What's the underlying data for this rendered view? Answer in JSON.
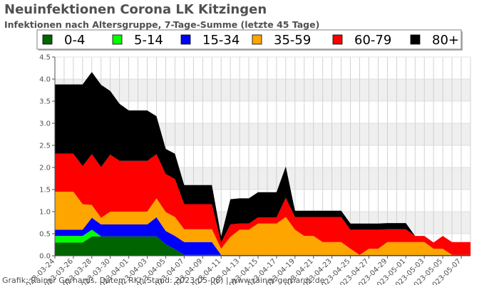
{
  "chart_data": {
    "type": "area",
    "stacked": true,
    "title": "Neuinfektionen Corona LK Kitzingen",
    "subtitle": "Infektionen nach Altersgruppe, 7-Tage-Summe (letzte 45 Tage)",
    "credit": "Grafik: Rainer Gerhards, Daten: RKI (Stand: 2023-05-08) | www.rainer-gerhards.de",
    "legend_position": "top",
    "grid": true,
    "ylim": [
      0,
      4.5
    ],
    "yticks": [
      "0.0",
      "0.5",
      "1.0",
      "1.5",
      "2.0",
      "2.5",
      "3.0",
      "3.5",
      "4.0",
      "4.5"
    ],
    "xtick_labels": [
      "2023-03-24",
      "2023-03-26",
      "2023-03-28",
      "2023-03-30",
      "2023-04-01",
      "2023-04-03",
      "2023-04-05",
      "2023-04-07",
      "2023-04-09",
      "2023-04-11",
      "2023-04-13",
      "2023-04-15",
      "2023-04-17",
      "2023-04-19",
      "2023-04-21",
      "2023-04-23",
      "2023-04-25",
      "2023-04-27",
      "2023-04-29",
      "2023-05-01",
      "2023-05-03",
      "2023-05-05",
      "2023-05-07"
    ],
    "x": [
      "2023-03-24",
      "2023-03-25",
      "2023-03-26",
      "2023-03-27",
      "2023-03-28",
      "2023-03-29",
      "2023-03-30",
      "2023-03-31",
      "2023-04-01",
      "2023-04-02",
      "2023-04-03",
      "2023-04-04",
      "2023-04-05",
      "2023-04-06",
      "2023-04-07",
      "2023-04-08",
      "2023-04-09",
      "2023-04-10",
      "2023-04-11",
      "2023-04-12",
      "2023-04-13",
      "2023-04-14",
      "2023-04-15",
      "2023-04-16",
      "2023-04-17",
      "2023-04-18",
      "2023-04-19",
      "2023-04-20",
      "2023-04-21",
      "2023-04-22",
      "2023-04-23",
      "2023-04-24",
      "2023-04-25",
      "2023-04-26",
      "2023-04-27",
      "2023-04-28",
      "2023-04-29",
      "2023-04-30",
      "2023-05-01",
      "2023-05-02",
      "2023-05-03",
      "2023-05-04",
      "2023-05-05",
      "2023-05-06",
      "2023-05-07",
      "2023-05-08"
    ],
    "series": [
      {
        "name": "0-4",
        "color": "#006400",
        "values": [
          0.3,
          0.3,
          0.3,
          0.3,
          0.44,
          0.44,
          0.44,
          0.44,
          0.44,
          0.44,
          0.44,
          0.44,
          0.26,
          0.15,
          0.02,
          0.02,
          0.02,
          0.02,
          0.02,
          0.02,
          0.02,
          0.02,
          0.02,
          0.02,
          0.02,
          0.02,
          0.02,
          0.02,
          0.02,
          0.02,
          0.02,
          0.02,
          0.02,
          0.02,
          0.02,
          0.02,
          0.02,
          0.02,
          0.02,
          0.02,
          0.02,
          0.02,
          0.02,
          0.02,
          0.02,
          0.02
        ]
      },
      {
        "name": "5-14",
        "color": "#00ff00",
        "values": [
          0.15,
          0.15,
          0.15,
          0.15,
          0.15,
          0,
          0,
          0,
          0,
          0,
          0,
          0,
          0,
          0,
          0,
          0,
          0,
          0,
          0,
          0,
          0,
          0,
          0,
          0,
          0,
          0,
          0,
          0,
          0,
          0,
          0,
          0,
          0,
          0,
          0,
          0,
          0,
          0,
          0,
          0,
          0,
          0,
          0,
          0,
          0,
          0
        ]
      },
      {
        "name": "15-34",
        "color": "#0000ff",
        "values": [
          0.14,
          0.14,
          0.14,
          0.14,
          0.27,
          0.27,
          0.27,
          0.27,
          0.27,
          0.27,
          0.27,
          0.43,
          0.3,
          0.3,
          0.29,
          0.29,
          0.29,
          0.29,
          0,
          0,
          0,
          0,
          0,
          0,
          0,
          0,
          0,
          0,
          0,
          0,
          0,
          0,
          0,
          0,
          0,
          0,
          0,
          0,
          0,
          0,
          0,
          0,
          0,
          0,
          0,
          0
        ]
      },
      {
        "name": "35-59",
        "color": "#ffa500",
        "values": [
          0.86,
          0.86,
          0.86,
          0.58,
          0.29,
          0.15,
          0.29,
          0.29,
          0.29,
          0.29,
          0.29,
          0.43,
          0.43,
          0.43,
          0.29,
          0.29,
          0.29,
          0.29,
          0.14,
          0.41,
          0.57,
          0.57,
          0.71,
          0.71,
          0.71,
          0.86,
          0.57,
          0.43,
          0.43,
          0.29,
          0.29,
          0.29,
          0.14,
          0,
          0.14,
          0.14,
          0.29,
          0.29,
          0.29,
          0.29,
          0.29,
          0.14,
          0.14,
          0,
          0,
          0
        ]
      },
      {
        "name": "60-79",
        "color": "#ff0000",
        "values": [
          0.86,
          0.86,
          0.86,
          0.86,
          1.15,
          1.15,
          1.29,
          1.15,
          1.15,
          1.15,
          1.15,
          1.0,
          0.86,
          0.86,
          0.57,
          0.57,
          0.57,
          0.57,
          0.14,
          0.28,
          0.14,
          0.14,
          0.14,
          0.14,
          0.14,
          0.43,
          0.29,
          0.43,
          0.43,
          0.57,
          0.57,
          0.57,
          0.43,
          0.57,
          0.43,
          0.43,
          0.29,
          0.29,
          0.29,
          0.14,
          0.14,
          0.14,
          0.29,
          0.29,
          0.29,
          0.29
        ]
      },
      {
        "name": "80+",
        "color": "#000000",
        "values": [
          1.57,
          1.57,
          1.57,
          1.85,
          1.86,
          1.86,
          1.44,
          1.29,
          1.14,
          1.14,
          1.14,
          0.86,
          0.57,
          0.57,
          0.43,
          0.43,
          0.43,
          0.43,
          0.14,
          0.57,
          0.57,
          0.57,
          0.57,
          0.57,
          0.57,
          0.71,
          0.14,
          0.14,
          0.14,
          0.14,
          0.14,
          0.14,
          0.14,
          0.14,
          0.14,
          0.14,
          0.14,
          0.14,
          0.14,
          0,
          0,
          0,
          0,
          0,
          0,
          0
        ]
      }
    ]
  }
}
